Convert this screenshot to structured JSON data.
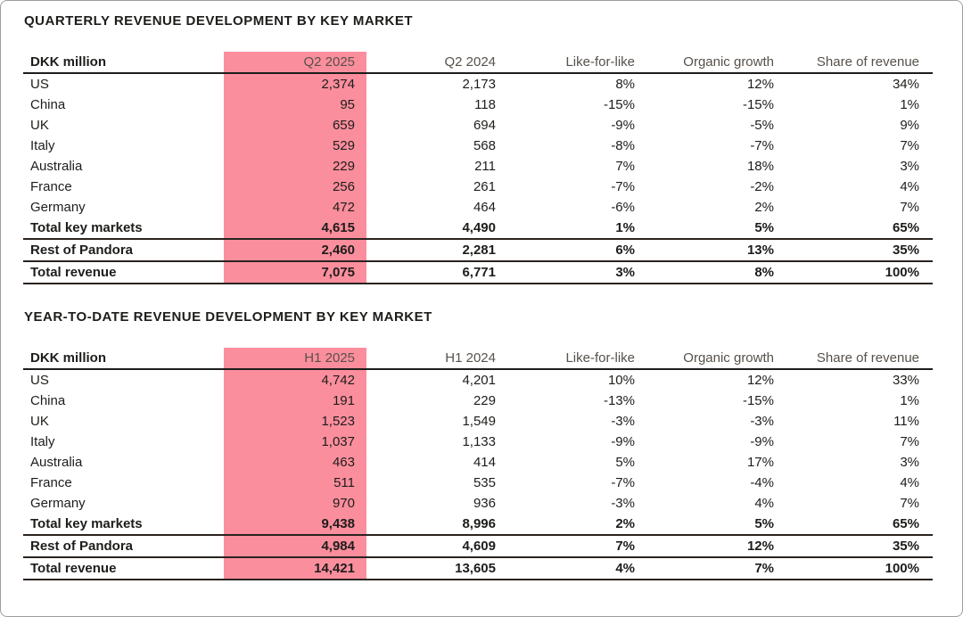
{
  "page": {
    "background": "#ffffff",
    "frame_border_color": "#9d9d9d"
  },
  "colors": {
    "highlight_pink": "#fb8e9d",
    "secondary_header_text": "#57504a",
    "body_text": "#1d1d1b",
    "header_rule": "#1d1d1b",
    "total_rule": "#2a231e"
  },
  "tables": [
    {
      "title": "QUARTERLY REVENUE DEVELOPMENT BY KEY MARKET",
      "columns": [
        "DKK million",
        "Q2 2025",
        "Q2 2024",
        "Like-for-like",
        "Organic growth",
        "Share of revenue"
      ],
      "highlight_column": "Q2 2025",
      "rows": [
        {
          "label": "US",
          "values": [
            "2,374",
            "2,173",
            "8%",
            "12%",
            "34%"
          ],
          "bold": false,
          "rule_below": false
        },
        {
          "label": "China",
          "values": [
            "95",
            "118",
            "-15%",
            "-15%",
            "1%"
          ],
          "bold": false,
          "rule_below": false
        },
        {
          "label": "UK",
          "values": [
            "659",
            "694",
            "-9%",
            "-5%",
            "9%"
          ],
          "bold": false,
          "rule_below": false
        },
        {
          "label": "Italy",
          "values": [
            "529",
            "568",
            "-8%",
            "-7%",
            "7%"
          ],
          "bold": false,
          "rule_below": false
        },
        {
          "label": "Australia",
          "values": [
            "229",
            "211",
            "7%",
            "18%",
            "3%"
          ],
          "bold": false,
          "rule_below": false
        },
        {
          "label": "France",
          "values": [
            "256",
            "261",
            "-7%",
            "-2%",
            "4%"
          ],
          "bold": false,
          "rule_below": false
        },
        {
          "label": "Germany",
          "values": [
            "472",
            "464",
            "-6%",
            "2%",
            "7%"
          ],
          "bold": false,
          "rule_below": false
        },
        {
          "label": "Total key markets",
          "values": [
            "4,615",
            "4,490",
            "1%",
            "5%",
            "65%"
          ],
          "bold": true,
          "rule_below": true
        },
        {
          "label": "Rest of Pandora",
          "values": [
            "2,460",
            "2,281",
            "6%",
            "13%",
            "35%"
          ],
          "bold": true,
          "rule_below": true
        },
        {
          "label": "Total revenue",
          "values": [
            "7,075",
            "6,771",
            "3%",
            "8%",
            "100%"
          ],
          "bold": true,
          "rule_below": true
        }
      ]
    },
    {
      "title": "YEAR-TO-DATE REVENUE DEVELOPMENT BY KEY MARKET",
      "columns": [
        "DKK million",
        "H1 2025",
        "H1 2024",
        "Like-for-like",
        "Organic growth",
        "Share of revenue"
      ],
      "highlight_column": "H1 2025",
      "rows": [
        {
          "label": "US",
          "values": [
            "4,742",
            "4,201",
            "10%",
            "12%",
            "33%"
          ],
          "bold": false,
          "rule_below": false
        },
        {
          "label": "China",
          "values": [
            "191",
            "229",
            "-13%",
            "-15%",
            "1%"
          ],
          "bold": false,
          "rule_below": false
        },
        {
          "label": "UK",
          "values": [
            "1,523",
            "1,549",
            "-3%",
            "-3%",
            "11%"
          ],
          "bold": false,
          "rule_below": false
        },
        {
          "label": "Italy",
          "values": [
            "1,037",
            "1,133",
            "-9%",
            "-9%",
            "7%"
          ],
          "bold": false,
          "rule_below": false
        },
        {
          "label": "Australia",
          "values": [
            "463",
            "414",
            "5%",
            "17%",
            "3%"
          ],
          "bold": false,
          "rule_below": false
        },
        {
          "label": "France",
          "values": [
            "511",
            "535",
            "-7%",
            "-4%",
            "4%"
          ],
          "bold": false,
          "rule_below": false
        },
        {
          "label": "Germany",
          "values": [
            "970",
            "936",
            "-3%",
            "4%",
            "7%"
          ],
          "bold": false,
          "rule_below": false
        },
        {
          "label": "Total key markets",
          "values": [
            "9,438",
            "8,996",
            "2%",
            "5%",
            "65%"
          ],
          "bold": true,
          "rule_below": true
        },
        {
          "label": "Rest of Pandora",
          "values": [
            "4,984",
            "4,609",
            "7%",
            "12%",
            "35%"
          ],
          "bold": true,
          "rule_below": true
        },
        {
          "label": "Total revenue",
          "values": [
            "14,421",
            "13,605",
            "4%",
            "7%",
            "100%"
          ],
          "bold": true,
          "rule_below": true
        }
      ]
    }
  ]
}
